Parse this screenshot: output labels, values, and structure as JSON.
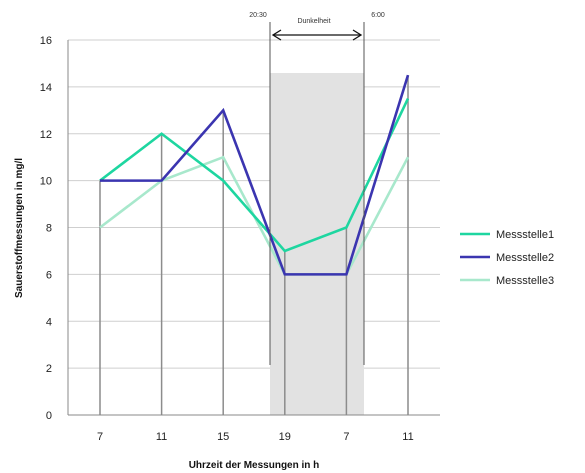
{
  "chart_data": {
    "type": "line",
    "categories": [
      "7",
      "11",
      "15",
      "19",
      "7",
      "11"
    ],
    "series": [
      {
        "name": "Messstelle1",
        "values": [
          10,
          12,
          10,
          7,
          8,
          13.5
        ],
        "color": "#1ed6a0"
      },
      {
        "name": "Messstelle2",
        "values": [
          10,
          10,
          13,
          6,
          6,
          14.5
        ],
        "color": "#3b35b0"
      },
      {
        "name": "Messstelle3",
        "values": [
          8,
          10,
          11,
          6,
          6,
          11
        ],
        "color": "#a8e8cc"
      }
    ],
    "xlabel": "Uhrzeit der Messungen in h",
    "ylabel": "Sauerstoffmessungen in mg/l",
    "ylim": [
      0,
      16
    ],
    "yticks": [
      0,
      2,
      4,
      6,
      8,
      10,
      12,
      14,
      16
    ],
    "grid": true,
    "legend_position": "right",
    "annotation": {
      "label": "Dunkelheit",
      "left_note": "20:30",
      "right_note": "6:00",
      "shaded_color": "#e2e2e2"
    }
  }
}
